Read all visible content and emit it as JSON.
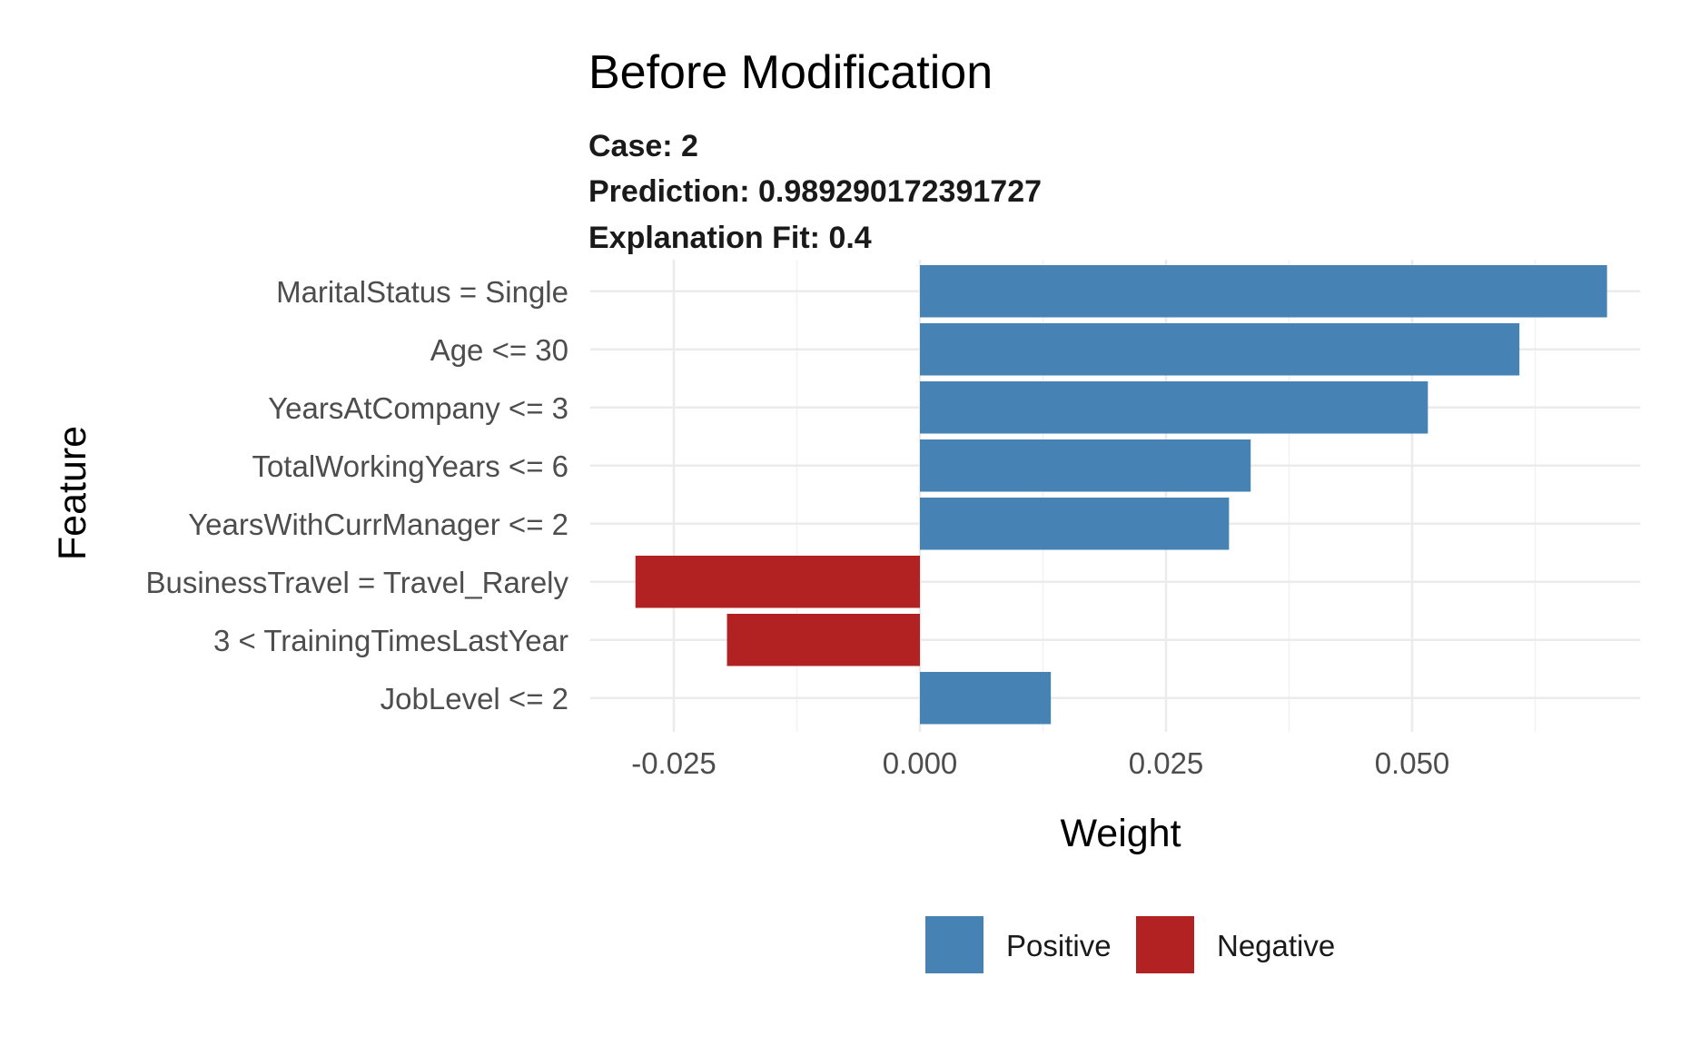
{
  "chart_data": {
    "type": "bar",
    "orientation": "horizontal",
    "title": "Before Modification",
    "subtitle_lines": [
      "Case: 2",
      "Prediction: 0.989290172391727",
      "Explanation Fit: 0.4"
    ],
    "xlabel": "Weight",
    "ylabel": "Feature",
    "xlim": [
      -0.0345,
      0.0745
    ],
    "xticks": [
      -0.025,
      0.0,
      0.025,
      0.05
    ],
    "xtick_labels": [
      "-0.025",
      "0.000",
      "0.025",
      "0.050"
    ],
    "categories": [
      "MaritalStatus = Single",
      "Age <= 30",
      "YearsAtCompany <= 3",
      "TotalWorkingYears <= 6",
      "YearsWithCurrManager <= 2",
      "BusinessTravel = Travel_Rarely",
      "3 < TrainingTimesLastYear",
      "JobLevel <= 2"
    ],
    "values": [
      0.0698,
      0.0609,
      0.0516,
      0.0336,
      0.0314,
      -0.0289,
      -0.0196,
      0.0133
    ],
    "groups": [
      "Positive",
      "Positive",
      "Positive",
      "Positive",
      "Positive",
      "Negative",
      "Negative",
      "Positive"
    ],
    "legend": {
      "position": "bottom",
      "entries": [
        {
          "label": "Positive",
          "color": "#4682b4"
        },
        {
          "label": "Negative",
          "color": "#b22222"
        }
      ]
    },
    "grid": true
  }
}
